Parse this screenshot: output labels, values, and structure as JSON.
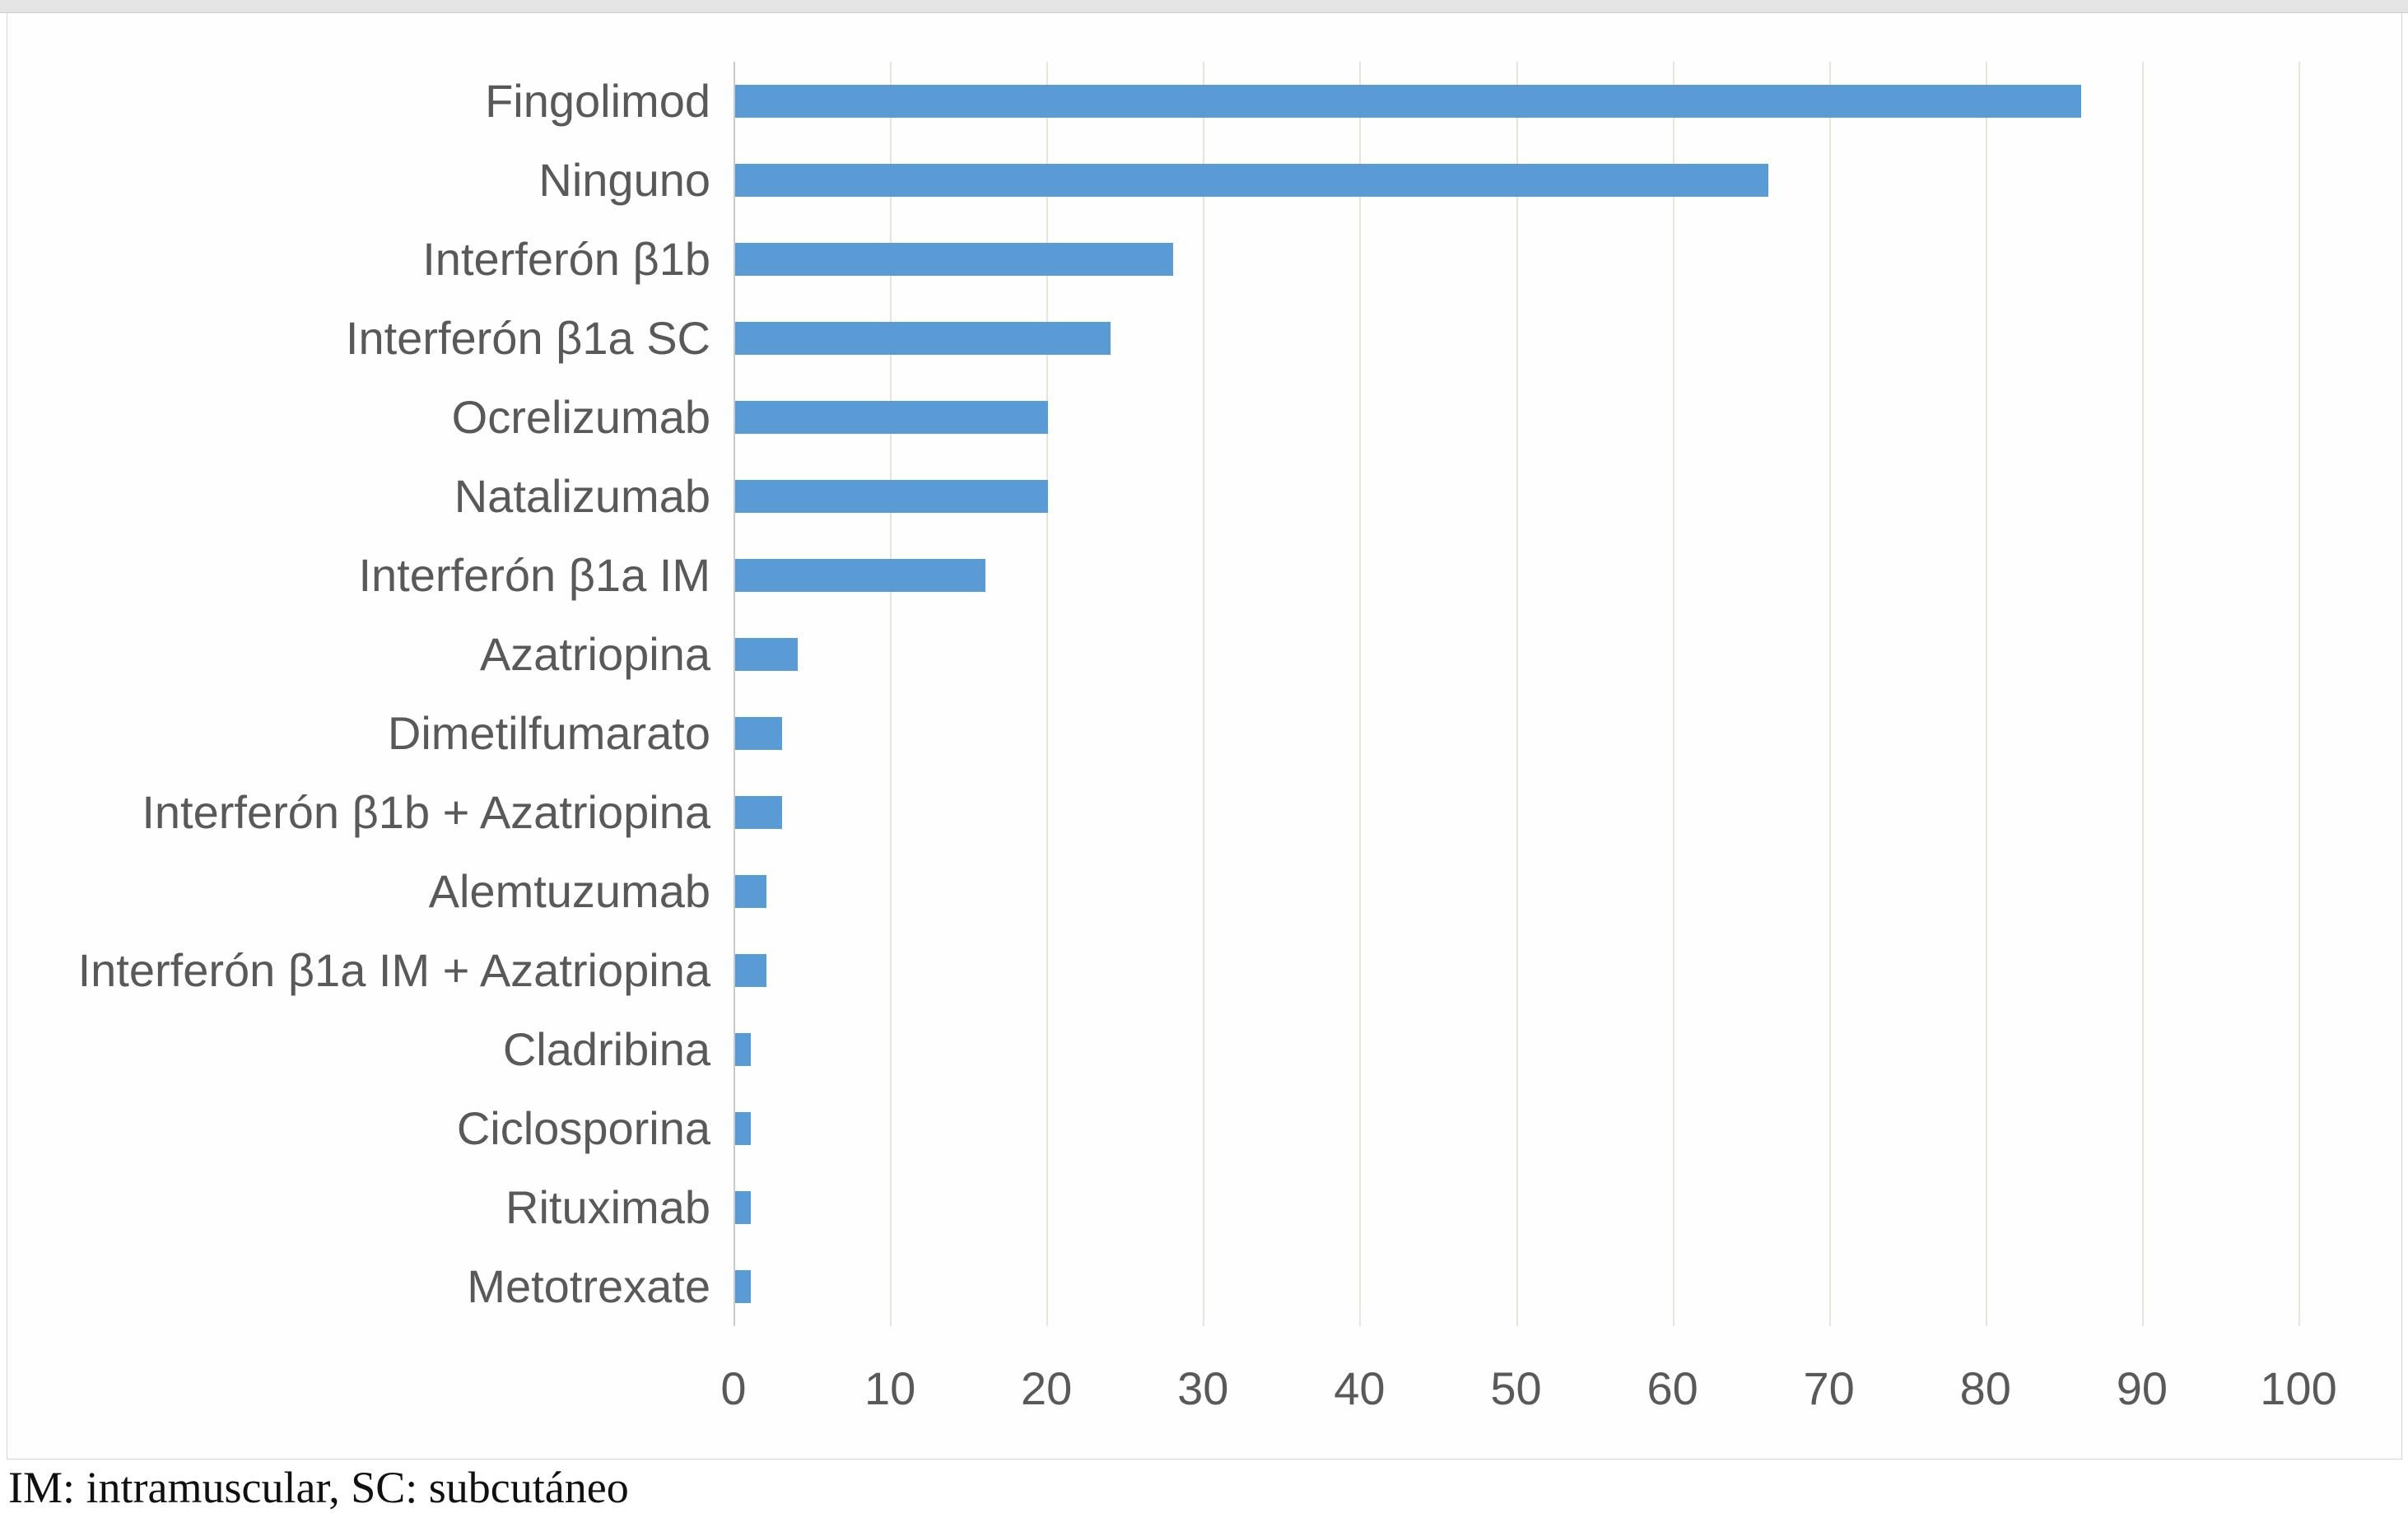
{
  "figure": {
    "footnote": "IM: intramuscular, SC: subcutáneo"
  },
  "chart_data": {
    "type": "bar",
    "orientation": "horizontal",
    "title": "",
    "xlabel": "",
    "ylabel": "",
    "categories": [
      "Fingolimod",
      "Ninguno",
      "Interferón β1b",
      "Interferón β1a SC",
      "Ocrelizumab",
      "Natalizumab",
      "Interferón β1a IM",
      "Azatriopina",
      "Dimetilfumarato",
      "Interferón β1b + Azatriopina",
      "Alemtuzumab",
      "Interferón β1a IM + Azatriopina",
      "Cladribina",
      "Ciclosporina",
      "Rituximab",
      "Metotrexate"
    ],
    "values": [
      86,
      66,
      28,
      24,
      20,
      20,
      16,
      4,
      3,
      3,
      2,
      2,
      1,
      1,
      1,
      1
    ],
    "xlim": [
      0,
      100
    ],
    "xticks": [
      0,
      10,
      20,
      30,
      40,
      50,
      60,
      70,
      80,
      90,
      100
    ],
    "grid": true,
    "legend": false,
    "bar_color": "#5B9BD5",
    "label_color": "#595959",
    "gridline_color": "#e8e4da",
    "axis_line_color": "#c9c9c9"
  }
}
